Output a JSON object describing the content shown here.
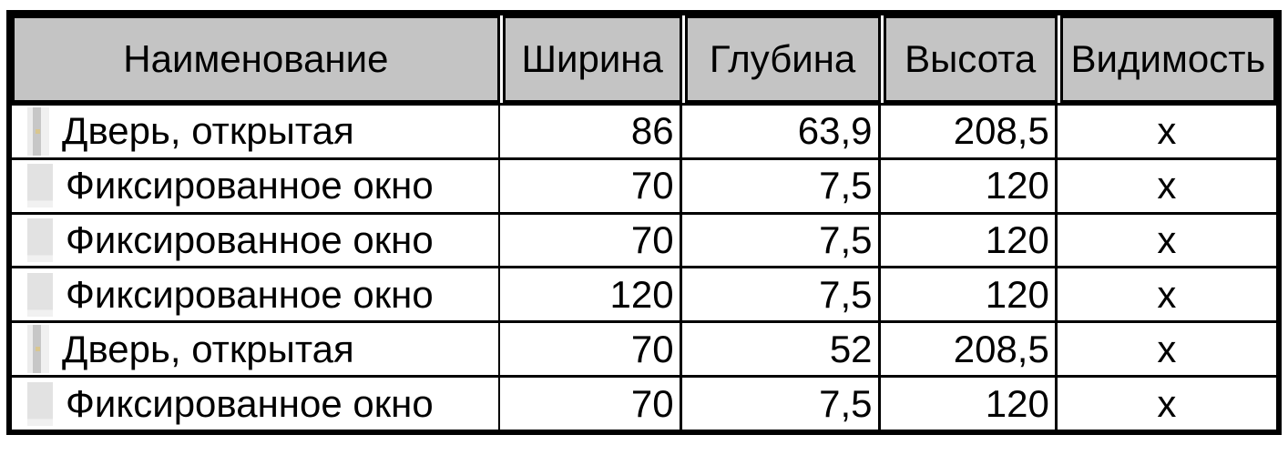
{
  "table": {
    "columns": [
      {
        "key": "name",
        "label": "Наименование"
      },
      {
        "key": "width",
        "label": "Ширина"
      },
      {
        "key": "depth",
        "label": "Глубина"
      },
      {
        "key": "height",
        "label": "Высота"
      },
      {
        "key": "visibility",
        "label": "Видимость"
      }
    ],
    "rows": [
      {
        "icon": "door",
        "name": "Дверь, открытая",
        "width": "86",
        "depth": "63,9",
        "height": "208,5",
        "visibility": "x"
      },
      {
        "icon": "window",
        "name": "Фиксированное окно",
        "width": "70",
        "depth": "7,5",
        "height": "120",
        "visibility": "x"
      },
      {
        "icon": "window",
        "name": "Фиксированное окно",
        "width": "70",
        "depth": "7,5",
        "height": "120",
        "visibility": "x"
      },
      {
        "icon": "window",
        "name": "Фиксированное окно",
        "width": "120",
        "depth": "7,5",
        "height": "120",
        "visibility": "x"
      },
      {
        "icon": "door",
        "name": "Дверь, открытая",
        "width": "70",
        "depth": "52",
        "height": "208,5",
        "visibility": "x"
      },
      {
        "icon": "window",
        "name": "Фиксированное окно",
        "width": "70",
        "depth": "7,5",
        "height": "120",
        "visibility": "x"
      }
    ],
    "colors": {
      "header_bg": "#c4c4c4",
      "border": "#000000",
      "row_bg": "#ffffff",
      "door_icon_gray": "#c7c7c7",
      "window_icon_gray": "#e2e2e2"
    }
  },
  "chart_data": {
    "type": "table",
    "title": "",
    "columns": [
      "Наименование",
      "Ширина",
      "Глубина",
      "Высота",
      "Видимость"
    ],
    "rows": [
      [
        "Дверь, открытая",
        "86",
        "63,9",
        "208,5",
        "x"
      ],
      [
        "Фиксированное окно",
        "70",
        "7,5",
        "120",
        "x"
      ],
      [
        "Фиксированное окно",
        "70",
        "7,5",
        "120",
        "x"
      ],
      [
        "Фиксированное окно",
        "120",
        "7,5",
        "120",
        "x"
      ],
      [
        "Дверь, открытая",
        "70",
        "52",
        "208,5",
        "x"
      ],
      [
        "Фиксированное окно",
        "70",
        "7,5",
        "120",
        "x"
      ]
    ],
    "layout": {
      "header_background": "#c4c4c4",
      "grid": "on",
      "numeric_alignment": "right",
      "visibility_alignment": "center"
    }
  }
}
